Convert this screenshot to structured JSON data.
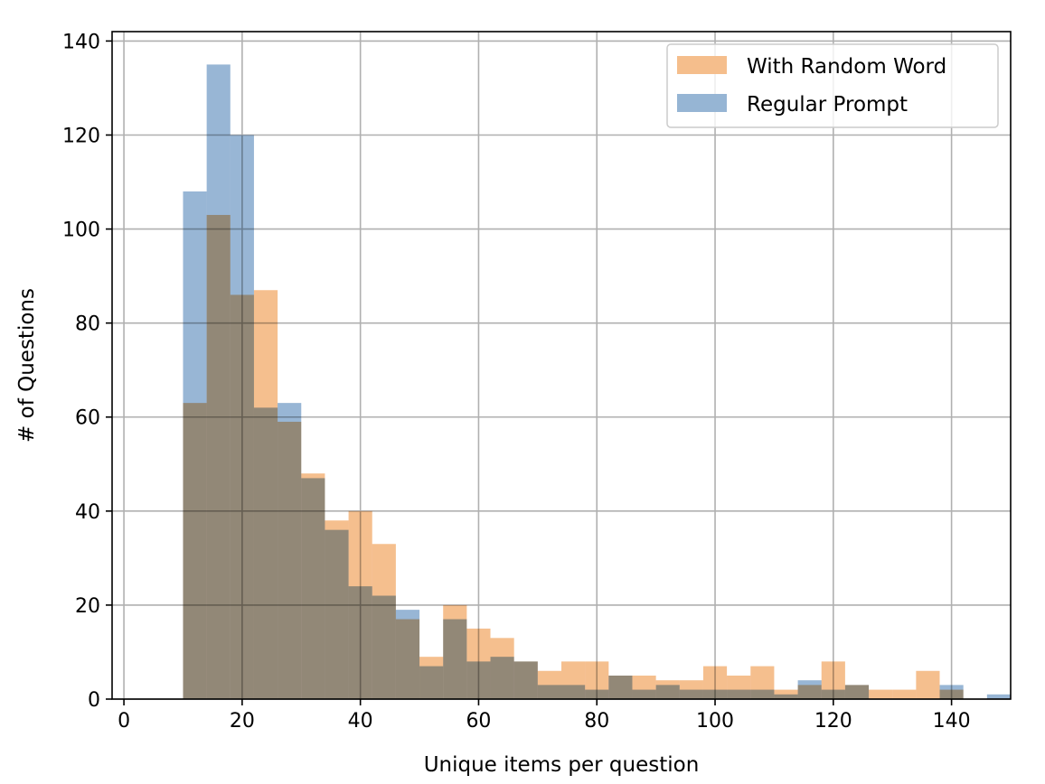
{
  "chart_data": {
    "type": "bar",
    "subtype": "overlapping-histogram",
    "title": "",
    "xlabel": "Unique items per question",
    "ylabel": "# of Questions",
    "xlim": [
      -2,
      150
    ],
    "ylim": [
      0,
      142
    ],
    "xticks": [
      0,
      20,
      40,
      60,
      80,
      100,
      120,
      140
    ],
    "yticks": [
      0,
      20,
      40,
      60,
      80,
      100,
      120,
      140
    ],
    "grid": true,
    "legend_position": "top-right",
    "bin_edges": [
      10,
      14,
      18,
      22,
      26,
      30,
      34,
      38,
      42,
      46,
      50,
      54,
      58,
      62,
      66,
      70,
      74,
      78,
      82,
      86,
      90,
      94,
      98,
      102,
      106,
      110,
      114,
      118,
      122,
      126,
      130,
      134,
      138,
      142,
      146,
      150
    ],
    "series": [
      {
        "name": "With Random Word",
        "color": "#f5be8c",
        "values": [
          63,
          103,
          86,
          87,
          59,
          48,
          38,
          40,
          33,
          17,
          9,
          20,
          15,
          13,
          8,
          6,
          8,
          8,
          5,
          5,
          4,
          4,
          7,
          5,
          7,
          2,
          3,
          8,
          3,
          2,
          2,
          6,
          2,
          0,
          0
        ]
      },
      {
        "name": "Regular Prompt",
        "color": "#96b5d4",
        "values": [
          108,
          135,
          120,
          62,
          63,
          47,
          36,
          24,
          22,
          19,
          7,
          17,
          8,
          9,
          8,
          3,
          3,
          2,
          5,
          2,
          3,
          2,
          2,
          2,
          2,
          1,
          4,
          2,
          3,
          0,
          0,
          0,
          3,
          0,
          1
        ]
      }
    ]
  }
}
